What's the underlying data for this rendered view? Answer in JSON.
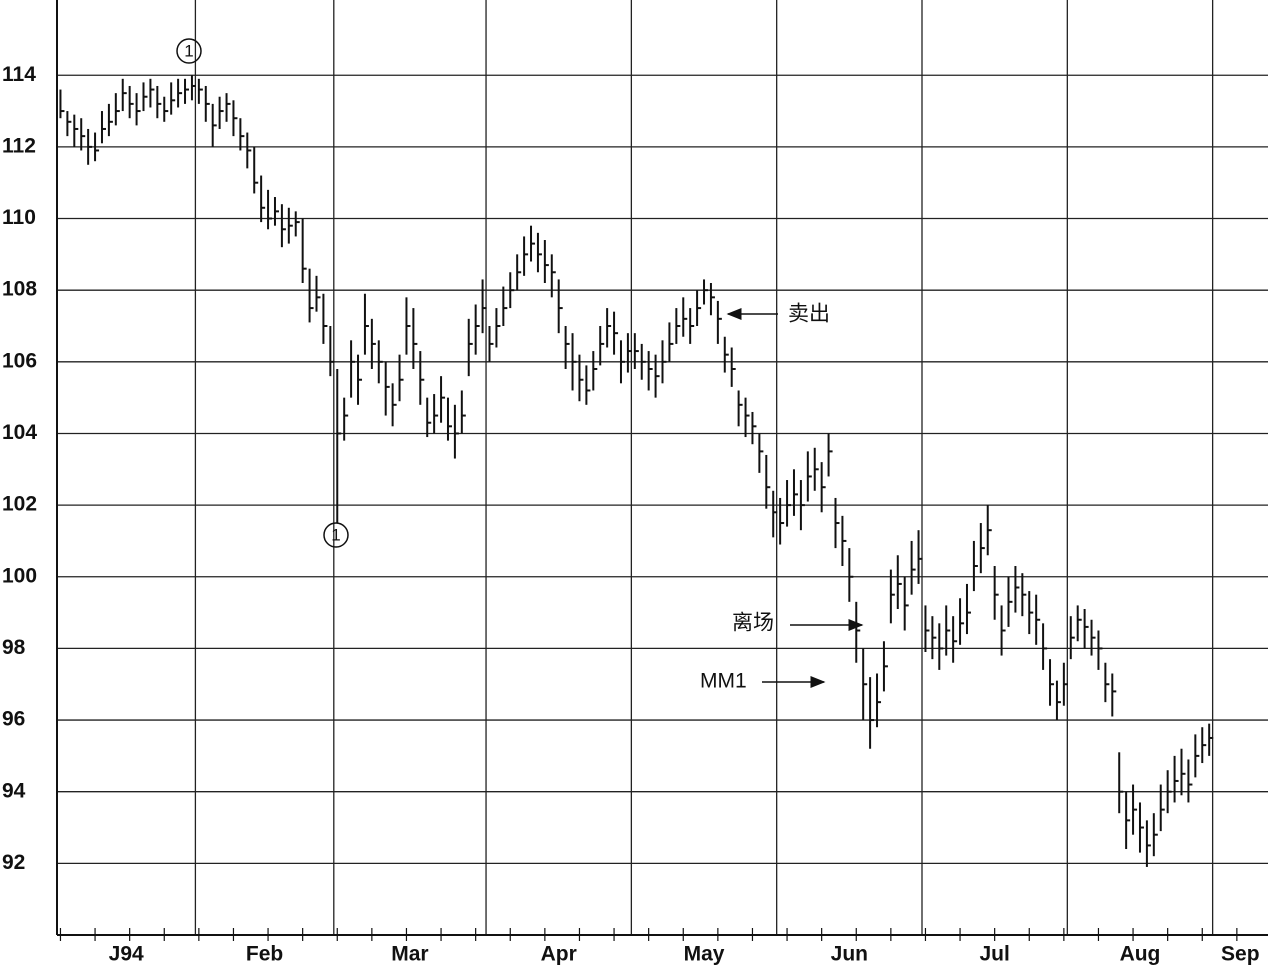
{
  "chart_data": {
    "type": "ohlc",
    "ylim": [
      90,
      116.1
    ],
    "yticks": [
      92,
      94,
      96,
      98,
      100,
      102,
      104,
      106,
      108,
      110,
      112,
      114
    ],
    "grid": true,
    "color": "#111111",
    "xlim": [
      -0.5,
      174.5
    ],
    "months": [
      "J94",
      "Feb",
      "Mar",
      "Apr",
      "May",
      "Jun",
      "Jul",
      "Aug",
      "Sep"
    ],
    "month_starts": [
      0,
      20,
      40,
      62,
      83,
      104,
      125,
      146,
      167,
      175
    ],
    "annotations": [
      "1",
      "1",
      "卖出",
      "离场",
      "MM1"
    ],
    "high": [
      113.6,
      113.0,
      112.9,
      112.8,
      112.5,
      112.4,
      113.0,
      113.2,
      113.5,
      113.9,
      113.7,
      113.5,
      113.8,
      113.9,
      113.7,
      113.4,
      113.8,
      113.9,
      113.9,
      114.0,
      113.9,
      113.7,
      113.2,
      113.4,
      113.5,
      113.3,
      112.8,
      112.4,
      112.0,
      111.2,
      110.8,
      110.6,
      110.4,
      110.3,
      110.2,
      110.0,
      108.6,
      108.4,
      107.9,
      107.0,
      105.8,
      105.0,
      106.6,
      106.2,
      107.9,
      107.2,
      106.6,
      106.0,
      105.4,
      106.2,
      107.8,
      107.5,
      106.3,
      105.0,
      105.1,
      105.6,
      105.0,
      104.8,
      105.2,
      107.2,
      107.6,
      108.3,
      107.0,
      107.5,
      108.1,
      108.5,
      109.0,
      109.5,
      109.8,
      109.6,
      109.4,
      109.0,
      108.3,
      107.0,
      106.8,
      106.2,
      105.9,
      106.3,
      107.0,
      107.5,
      107.4,
      106.6,
      106.8,
      106.8,
      106.5,
      106.3,
      106.2,
      106.6,
      107.1,
      107.5,
      107.8,
      107.5,
      108.0,
      108.3,
      108.2,
      107.7,
      106.7,
      106.4,
      105.2,
      105.0,
      104.6,
      104.0,
      103.4,
      102.4,
      102.2,
      102.7,
      103.0,
      102.7,
      103.5,
      103.6,
      103.2,
      104.0,
      102.2,
      101.7,
      100.8,
      99.3,
      98.0,
      97.2,
      97.3,
      98.2,
      100.2,
      100.6,
      100.0,
      101.0,
      101.3,
      99.2,
      98.9,
      98.7,
      99.2,
      98.9,
      99.4,
      99.8,
      101.0,
      101.5,
      102.0,
      100.3,
      99.2,
      100.0,
      100.3,
      100.1,
      99.6,
      99.5,
      98.7,
      97.7,
      97.1,
      97.6,
      98.9,
      99.2,
      99.1,
      98.8,
      98.5,
      97.6,
      97.3,
      95.1,
      94.0,
      94.2,
      93.7,
      93.2,
      93.4,
      94.2,
      94.6,
      95.0,
      95.2,
      94.9,
      95.6,
      95.8,
      95.9
    ],
    "low": [
      112.8,
      112.3,
      112.0,
      111.9,
      111.5,
      111.6,
      112.1,
      112.3,
      112.6,
      113.0,
      112.8,
      112.6,
      113.0,
      113.1,
      112.8,
      112.7,
      112.9,
      113.1,
      113.2,
      113.3,
      113.2,
      112.7,
      112.0,
      112.5,
      112.7,
      112.3,
      111.9,
      111.4,
      110.7,
      109.9,
      109.7,
      109.8,
      109.2,
      109.3,
      109.5,
      108.2,
      107.1,
      107.4,
      106.5,
      105.6,
      101.5,
      103.8,
      105.0,
      104.8,
      106.2,
      105.8,
      105.4,
      104.5,
      104.2,
      104.9,
      106.2,
      105.8,
      104.8,
      103.9,
      104.0,
      104.3,
      103.8,
      103.3,
      104.0,
      105.6,
      106.2,
      106.8,
      106.0,
      106.4,
      107.0,
      107.5,
      108.0,
      108.4,
      108.8,
      108.5,
      108.2,
      107.8,
      106.8,
      105.8,
      105.2,
      104.9,
      104.8,
      105.2,
      105.9,
      106.4,
      106.2,
      105.4,
      105.7,
      105.8,
      105.5,
      105.2,
      105.0,
      105.4,
      106.0,
      106.5,
      106.7,
      106.5,
      107.0,
      107.6,
      107.3,
      106.5,
      105.7,
      105.3,
      104.2,
      103.9,
      103.7,
      102.9,
      101.9,
      101.1,
      100.9,
      101.4,
      101.7,
      101.3,
      102.1,
      102.4,
      101.8,
      102.8,
      100.8,
      100.3,
      99.3,
      97.6,
      96.0,
      95.2,
      95.8,
      96.8,
      98.7,
      99.1,
      98.5,
      99.5,
      99.8,
      97.9,
      97.7,
      97.4,
      97.8,
      97.6,
      98.1,
      98.4,
      99.6,
      100.1,
      100.6,
      98.8,
      97.8,
      98.6,
      99.0,
      98.9,
      98.4,
      98.1,
      97.4,
      96.4,
      96.0,
      96.4,
      97.7,
      98.2,
      98.0,
      97.8,
      97.4,
      96.5,
      96.1,
      93.4,
      92.4,
      92.8,
      92.3,
      91.9,
      92.2,
      92.9,
      93.4,
      93.7,
      93.9,
      93.7,
      94.4,
      94.8,
      95.0
    ],
    "close": [
      113.0,
      112.7,
      112.5,
      112.3,
      112.0,
      111.9,
      112.5,
      112.7,
      113.0,
      113.5,
      113.2,
      113.0,
      113.4,
      113.6,
      113.2,
      113.0,
      113.3,
      113.5,
      113.6,
      113.7,
      113.6,
      113.2,
      112.6,
      113.0,
      113.2,
      112.8,
      112.3,
      111.9,
      111.0,
      110.3,
      110.0,
      110.2,
      109.7,
      109.8,
      109.9,
      108.6,
      107.5,
      107.8,
      107.0,
      106.0,
      104.0,
      104.5,
      106.0,
      105.5,
      107.0,
      106.5,
      106.0,
      105.3,
      104.8,
      105.5,
      107.0,
      106.5,
      105.5,
      104.3,
      104.5,
      105.0,
      104.2,
      104.0,
      104.5,
      106.5,
      107.0,
      107.5,
      106.5,
      107.0,
      107.5,
      108.0,
      108.5,
      109.0,
      109.3,
      109.0,
      108.7,
      108.5,
      107.5,
      106.5,
      106.0,
      105.5,
      105.2,
      105.8,
      106.5,
      107.0,
      106.8,
      106.0,
      106.3,
      106.3,
      106.0,
      105.8,
      105.6,
      106.0,
      106.5,
      107.0,
      107.2,
      107.0,
      107.5,
      108.0,
      107.8,
      107.2,
      106.2,
      105.8,
      104.8,
      104.5,
      104.2,
      103.5,
      102.5,
      101.8,
      101.5,
      102.0,
      102.3,
      102.0,
      102.8,
      103.0,
      102.5,
      103.5,
      101.5,
      101.0,
      100.0,
      98.5,
      97.0,
      96.0,
      96.5,
      97.5,
      99.5,
      99.8,
      99.2,
      100.2,
      100.5,
      98.5,
      98.3,
      98.0,
      98.5,
      98.2,
      98.7,
      99.0,
      100.3,
      100.8,
      101.3,
      99.5,
      98.5,
      99.3,
      99.7,
      99.5,
      99.0,
      98.8,
      98.0,
      97.0,
      96.5,
      97.0,
      98.3,
      98.8,
      98.6,
      98.3,
      98.0,
      97.0,
      96.8,
      94.0,
      93.2,
      93.5,
      93.0,
      92.5,
      92.8,
      93.5,
      94.0,
      94.3,
      94.5,
      94.2,
      95.0,
      95.3,
      95.5
    ]
  }
}
